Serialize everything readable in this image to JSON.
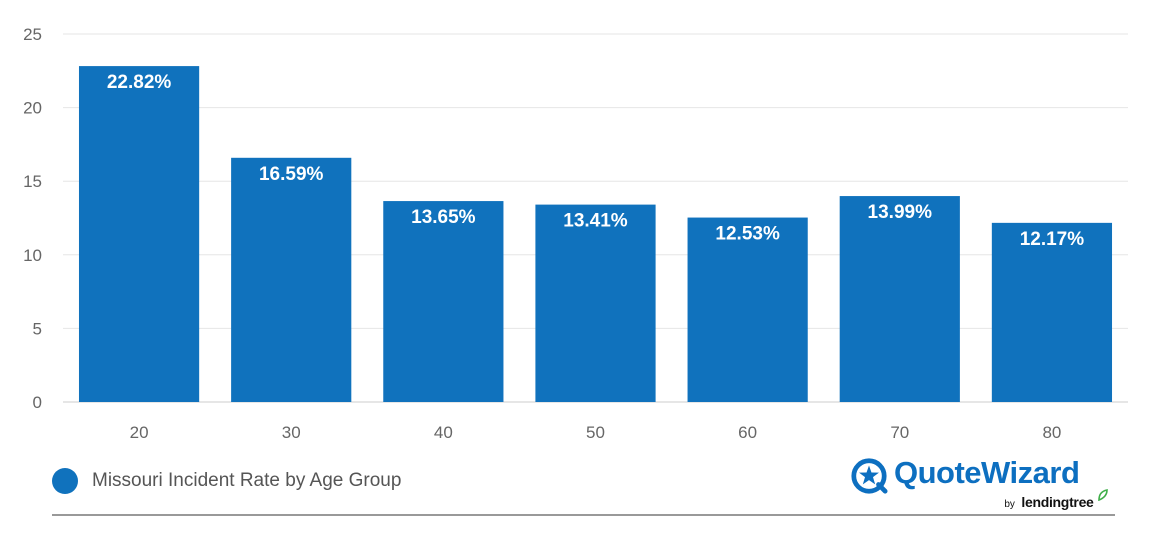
{
  "chart_data": {
    "type": "bar",
    "categories": [
      "20",
      "30",
      "40",
      "50",
      "60",
      "70",
      "80"
    ],
    "values": [
      22.82,
      16.59,
      13.65,
      13.41,
      12.53,
      13.99,
      12.17
    ],
    "data_labels": [
      "22.82%",
      "16.59%",
      "13.65%",
      "13.41%",
      "12.53%",
      "13.99%",
      "12.17%"
    ],
    "y_ticks": [
      "0",
      "5",
      "10",
      "15",
      "20",
      "25"
    ],
    "ylim": [
      0,
      25
    ],
    "grid": true,
    "series_name": "Missouri Incident Rate by Age Group",
    "legend_position": "bottom-left"
  },
  "colors": {
    "bar": "#1072bd",
    "grid": "#e6e6e6",
    "tick_text": "#666666",
    "data_label": "#ffffff"
  },
  "logo": {
    "brand": "QuoteWizard",
    "by": "by",
    "partner": "lendingtree",
    "brand_color": "#0d6fc0",
    "leaf_color": "#3fae49"
  }
}
